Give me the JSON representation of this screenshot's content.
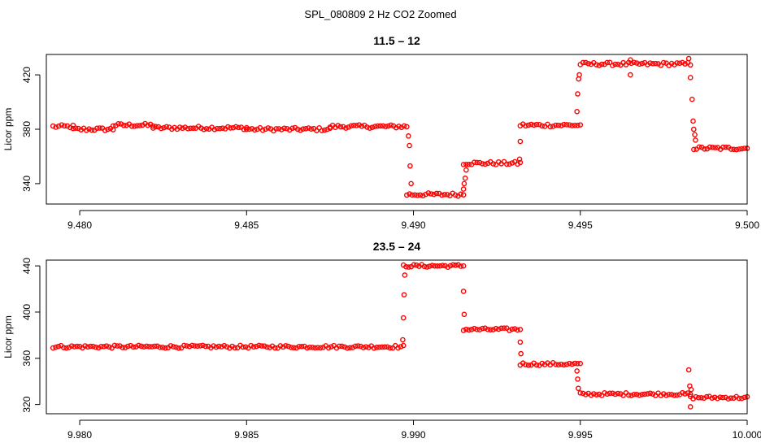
{
  "page_title": "SPL_080809  2 Hz CO2 Zoomed",
  "chart_data": [
    {
      "type": "scatter",
      "title": "11.5 – 12",
      "xlabel": "",
      "ylabel": "Licor ppm",
      "xlim": [
        9.479,
        9.5
      ],
      "ylim": [
        325,
        435
      ],
      "xticks": [
        9.48,
        9.485,
        9.49,
        9.495,
        9.5
      ],
      "xtick_labels": [
        "9.480",
        "9.485",
        "9.490",
        "9.495",
        "9.500"
      ],
      "yticks": [
        340,
        380,
        420
      ],
      "ytick_labels": [
        "340",
        "380",
        "420"
      ],
      "marker_color": "#ff0000",
      "grid": false,
      "segments": [
        {
          "x": [
            9.4792,
            9.4798
          ],
          "y": [
            382,
            382
          ]
        },
        {
          "x": [
            9.4798,
            9.481
          ],
          "y": [
            380,
            380
          ]
        },
        {
          "x": [
            9.481,
            9.4822
          ],
          "y": [
            383,
            383
          ]
        },
        {
          "x": [
            9.4822,
            9.485
          ],
          "y": [
            381,
            381
          ]
        },
        {
          "x": [
            9.485,
            9.4875
          ],
          "y": [
            380,
            380
          ]
        },
        {
          "x": [
            9.4875,
            9.4898
          ],
          "y": [
            382,
            382
          ]
        },
        {
          "x": [
            9.4898,
            9.4915
          ],
          "y": [
            332,
            332
          ]
        },
        {
          "x": [
            9.4915,
            9.4932
          ],
          "y": [
            355,
            355
          ]
        },
        {
          "x": [
            9.4932,
            9.495
          ],
          "y": [
            383,
            383
          ]
        },
        {
          "x": [
            9.495,
            9.4983
          ],
          "y": [
            428,
            428
          ]
        },
        {
          "x": [
            9.4984,
            9.5
          ],
          "y": [
            366,
            366
          ]
        }
      ],
      "transition_points": [
        {
          "x": 9.48985,
          "y": 375
        },
        {
          "x": 9.48988,
          "y": 368
        },
        {
          "x": 9.4899,
          "y": 353
        },
        {
          "x": 9.48993,
          "y": 340
        },
        {
          "x": 9.4915,
          "y": 336
        },
        {
          "x": 9.49152,
          "y": 340
        },
        {
          "x": 9.49155,
          "y": 344
        },
        {
          "x": 9.49158,
          "y": 350
        },
        {
          "x": 9.49318,
          "y": 358
        },
        {
          "x": 9.4932,
          "y": 371
        },
        {
          "x": 9.4949,
          "y": 393
        },
        {
          "x": 9.49492,
          "y": 406
        },
        {
          "x": 9.49495,
          "y": 417
        },
        {
          "x": 9.49497,
          "y": 420
        },
        {
          "x": 9.4965,
          "y": 431
        },
        {
          "x": 9.4965,
          "y": 420
        },
        {
          "x": 9.49825,
          "y": 432
        },
        {
          "x": 9.4983,
          "y": 418
        },
        {
          "x": 9.49835,
          "y": 402
        },
        {
          "x": 9.49838,
          "y": 386
        },
        {
          "x": 9.4984,
          "y": 380
        },
        {
          "x": 9.49843,
          "y": 376
        },
        {
          "x": 9.49845,
          "y": 372
        }
      ]
    },
    {
      "type": "scatter",
      "title": "23.5 – 24",
      "xlabel": "",
      "ylabel": "Licor ppm",
      "xlim": [
        9.979,
        10.0
      ],
      "ylim": [
        312,
        445
      ],
      "xticks": [
        9.98,
        9.985,
        9.99,
        9.995,
        10.0
      ],
      "xtick_labels": [
        "9.980",
        "9.985",
        "9.990",
        "9.995",
        "10.000"
      ],
      "yticks": [
        320,
        360,
        400,
        440
      ],
      "ytick_labels": [
        "320",
        "360",
        "400",
        "440"
      ],
      "marker_color": "#ff0000",
      "grid": false,
      "segments": [
        {
          "x": [
            9.9792,
            9.9897
          ],
          "y": [
            370,
            370
          ]
        },
        {
          "x": [
            9.9897,
            9.9915
          ],
          "y": [
            440,
            440
          ]
        },
        {
          "x": [
            9.9915,
            9.9932
          ],
          "y": [
            385,
            385
          ]
        },
        {
          "x": [
            9.9932,
            9.995
          ],
          "y": [
            355,
            355
          ]
        },
        {
          "x": [
            9.995,
            9.9983
          ],
          "y": [
            329,
            329
          ]
        },
        {
          "x": [
            9.9983,
            10.0
          ],
          "y": [
            326,
            326
          ]
        }
      ],
      "transition_points": [
        {
          "x": 9.98968,
          "y": 376
        },
        {
          "x": 9.9897,
          "y": 395
        },
        {
          "x": 9.98972,
          "y": 415
        },
        {
          "x": 9.98974,
          "y": 432
        },
        {
          "x": 9.9915,
          "y": 418
        },
        {
          "x": 9.99152,
          "y": 398
        },
        {
          "x": 9.9932,
          "y": 374
        },
        {
          "x": 9.99322,
          "y": 364
        },
        {
          "x": 9.9949,
          "y": 349
        },
        {
          "x": 9.99492,
          "y": 342
        },
        {
          "x": 9.99494,
          "y": 334
        },
        {
          "x": 9.99825,
          "y": 350
        },
        {
          "x": 9.99828,
          "y": 336
        },
        {
          "x": 9.9983,
          "y": 318
        },
        {
          "x": 9.99832,
          "y": 333
        }
      ]
    }
  ]
}
